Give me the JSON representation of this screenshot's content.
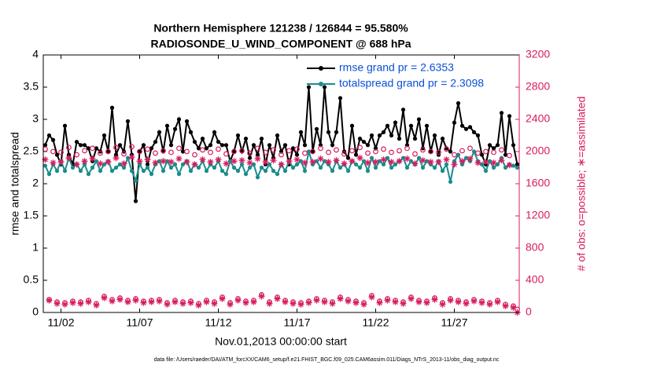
{
  "chart_data": {
    "type": "line",
    "title": "Northern Hemisphere 121238 / 126844 = 95.580%",
    "subtitle": "RADIOSONDE_U_WIND_COMPONENT @ 688 hPa",
    "x_label": "Nov.01,2013 00:00:00 start",
    "y_label": "rmse and totalspread",
    "y2_label": "# of obs: o=possible; ∗=assimilated",
    "footnote": "data file: /Users/raeder/DAI/ATM_forcXX/CAM6_setup/f.e21.FHIST_BGC.f09_025.CAM6assim.011/Diags_NTrS_2013-11/obs_diag_output.nc",
    "xlim": [
      -0.125,
      30.125
    ],
    "xticks": [
      {
        "value": 1,
        "label": "11/02"
      },
      {
        "value": 6,
        "label": "11/07"
      },
      {
        "value": 11,
        "label": "11/12"
      },
      {
        "value": 16,
        "label": "11/17"
      },
      {
        "value": 21,
        "label": "11/22"
      },
      {
        "value": 26,
        "label": "11/27"
      }
    ],
    "ylim": [
      0,
      4
    ],
    "yticks": [
      0,
      0.5,
      1,
      1.5,
      2,
      2.5,
      3,
      3.5,
      4
    ],
    "y2lim": [
      0,
      3200
    ],
    "y2ticks": [
      0,
      400,
      800,
      1200,
      1600,
      2000,
      2400,
      2800,
      3200
    ],
    "y2_color": "#d81b60",
    "legend_text_color": "#0a4fd6",
    "legend_position": "upper right",
    "x": [
      0,
      0.25,
      0.5,
      0.75,
      1,
      1.25,
      1.5,
      1.75,
      2,
      2.25,
      2.5,
      2.75,
      3,
      3.25,
      3.5,
      3.75,
      4,
      4.25,
      4.5,
      4.75,
      5,
      5.25,
      5.5,
      5.75,
      6,
      6.25,
      6.5,
      6.75,
      7,
      7.25,
      7.5,
      7.75,
      8,
      8.25,
      8.5,
      8.75,
      9,
      9.25,
      9.5,
      9.75,
      10,
      10.25,
      10.5,
      10.75,
      11,
      11.25,
      11.5,
      11.75,
      12,
      12.25,
      12.5,
      12.75,
      13,
      13.25,
      13.5,
      13.75,
      14,
      14.25,
      14.5,
      14.75,
      15,
      15.25,
      15.5,
      15.75,
      16,
      16.25,
      16.5,
      16.75,
      17,
      17.25,
      17.5,
      17.75,
      18,
      18.25,
      18.5,
      18.75,
      19,
      19.25,
      19.5,
      19.75,
      20,
      20.25,
      20.5,
      20.75,
      21,
      21.25,
      21.5,
      21.75,
      22,
      22.25,
      22.5,
      22.75,
      23,
      23.25,
      23.5,
      23.75,
      24,
      24.25,
      24.5,
      24.75,
      25,
      25.25,
      25.5,
      25.75,
      26,
      26.25,
      26.5,
      26.75,
      27,
      27.25,
      27.5,
      27.75,
      28,
      28.25,
      28.5,
      28.75,
      29,
      29.25,
      29.5,
      29.75,
      30
    ],
    "series": [
      {
        "name": "rmse grand pr = 2.6353",
        "color": "#000000",
        "style": "line",
        "values": [
          2.6,
          2.75,
          2.68,
          2.45,
          2.3,
          2.9,
          2.45,
          2.3,
          2.65,
          2.6,
          2.6,
          2.55,
          2.35,
          2.55,
          2.5,
          2.75,
          2.5,
          3.18,
          2.45,
          2.6,
          2.5,
          2.97,
          2.45,
          1.73,
          2.5,
          2.6,
          2.3,
          2.55,
          2.65,
          2.8,
          2.5,
          2.9,
          2.6,
          2.85,
          3.0,
          2.5,
          2.97,
          2.8,
          2.65,
          2.55,
          2.7,
          2.55,
          2.6,
          2.8,
          2.65,
          2.6,
          2.6,
          2.35,
          2.5,
          2.75,
          2.5,
          2.7,
          2.4,
          2.6,
          2.45,
          2.7,
          2.3,
          2.6,
          2.4,
          2.75,
          2.5,
          2.6,
          2.3,
          2.55,
          2.45,
          2.8,
          2.6,
          3.5,
          2.5,
          2.85,
          2.6,
          3.5,
          2.8,
          2.6,
          2.8,
          3.33,
          2.5,
          2.4,
          2.9,
          2.45,
          2.7,
          2.65,
          2.6,
          2.75,
          2.55,
          2.75,
          2.8,
          2.9,
          2.75,
          2.95,
          2.7,
          3.15,
          2.6,
          2.9,
          2.7,
          3.0,
          2.55,
          2.9,
          2.5,
          2.75,
          2.45,
          2.7,
          2.55,
          2.5,
          2.95,
          3.25,
          2.9,
          2.85,
          2.88,
          2.8,
          2.75,
          2.45,
          2.3,
          2.6,
          2.55,
          2.6,
          3.1,
          2.45,
          3.05,
          2.6,
          2.3
        ]
      },
      {
        "name": "totalspread grand pr = 2.3098",
        "color": "#1a8c8c",
        "style": "line",
        "values": [
          2.28,
          2.15,
          2.3,
          2.2,
          2.35,
          2.2,
          2.4,
          2.25,
          2.3,
          2.2,
          2.3,
          2.15,
          2.25,
          2.35,
          2.2,
          2.3,
          2.35,
          2.2,
          2.25,
          2.3,
          2.25,
          2.4,
          2.2,
          2.05,
          2.3,
          2.2,
          2.25,
          2.15,
          2.3,
          2.35,
          2.2,
          2.35,
          2.25,
          2.3,
          2.15,
          2.3,
          2.35,
          2.2,
          2.3,
          2.25,
          2.35,
          2.2,
          2.3,
          2.25,
          2.35,
          2.2,
          2.15,
          2.35,
          2.25,
          2.2,
          2.3,
          2.15,
          2.25,
          2.3,
          2.1,
          2.25,
          2.2,
          2.3,
          2.2,
          2.15,
          2.3,
          2.2,
          2.35,
          2.25,
          2.3,
          2.35,
          2.2,
          2.5,
          2.3,
          2.35,
          2.25,
          2.35,
          2.3,
          2.2,
          2.35,
          2.25,
          2.3,
          2.2,
          2.35,
          2.3,
          2.25,
          2.35,
          2.2,
          2.4,
          2.25,
          2.35,
          2.3,
          2.4,
          2.25,
          2.3,
          2.35,
          2.4,
          2.25,
          2.35,
          2.3,
          2.4,
          2.25,
          2.35,
          2.3,
          2.25,
          2.35,
          2.2,
          2.3,
          2.03,
          2.35,
          2.45,
          2.3,
          2.4,
          2.35,
          2.5,
          2.35,
          2.3,
          2.2,
          2.35,
          2.25,
          2.3,
          2.4,
          2.25,
          2.3,
          2.28,
          2.25
        ]
      },
      {
        "name": "possible",
        "color": "#d81b60",
        "style": "circle",
        "axis": "y2",
        "values": [
          2030,
          160,
          2000,
          130,
          1990,
          120,
          2050,
          140,
          1960,
          130,
          2010,
          150,
          2040,
          110,
          1980,
          200,
          2000,
          160,
          2050,
          180,
          1970,
          150,
          2060,
          170,
          2000,
          140,
          2030,
          150,
          1980,
          160,
          2010,
          120,
          1990,
          150,
          2040,
          130,
          2000,
          140,
          1960,
          110,
          2020,
          150,
          1990,
          130,
          2030,
          190,
          1970,
          120,
          2000,
          170,
          2010,
          140,
          1980,
          150,
          2040,
          220,
          1990,
          130,
          2020,
          190,
          1960,
          150,
          2010,
          130,
          2030,
          120,
          1980,
          140,
          2000,
          170,
          2040,
          150,
          1990,
          130,
          2020,
          190,
          1970,
          160,
          2010,
          140,
          2050,
          120,
          1980,
          210,
          2000,
          140,
          2030,
          170,
          1990,
          150,
          2010,
          130,
          2040,
          190,
          1970,
          150,
          2020,
          140,
          2000,
          180,
          1990,
          120,
          2030,
          170,
          1960,
          150,
          2010,
          130,
          2040,
          160,
          1980,
          140,
          2000,
          120,
          1990,
          150,
          2020,
          100,
          1950,
          80,
          40
        ]
      },
      {
        "name": "assimilated",
        "color": "#d81b60",
        "style": "asterisk",
        "axis": "y2",
        "values": [
          1900,
          150,
          1860,
          110,
          1870,
          100,
          1920,
          120,
          1840,
          110,
          1880,
          130,
          1910,
          90,
          1850,
          180,
          1870,
          140,
          1920,
          160,
          1850,
          130,
          1930,
          150,
          1880,
          120,
          1900,
          130,
          1860,
          140,
          1880,
          100,
          1870,
          130,
          1910,
          110,
          1870,
          120,
          1840,
          90,
          1900,
          130,
          1870,
          110,
          1900,
          170,
          1850,
          100,
          1880,
          150,
          1890,
          120,
          1860,
          130,
          1910,
          200,
          1870,
          110,
          1890,
          170,
          1840,
          130,
          1880,
          110,
          1900,
          100,
          1860,
          120,
          1870,
          150,
          1910,
          130,
          1870,
          110,
          1890,
          170,
          1850,
          140,
          1880,
          120,
          1920,
          100,
          1860,
          190,
          1870,
          120,
          1900,
          150,
          1870,
          130,
          1880,
          110,
          1910,
          170,
          1850,
          130,
          1890,
          120,
          1870,
          160,
          1870,
          100,
          1900,
          150,
          1840,
          130,
          1880,
          110,
          1910,
          140,
          1860,
          120,
          1870,
          100,
          1860,
          130,
          1890,
          80,
          1830,
          60,
          0
        ]
      }
    ]
  }
}
